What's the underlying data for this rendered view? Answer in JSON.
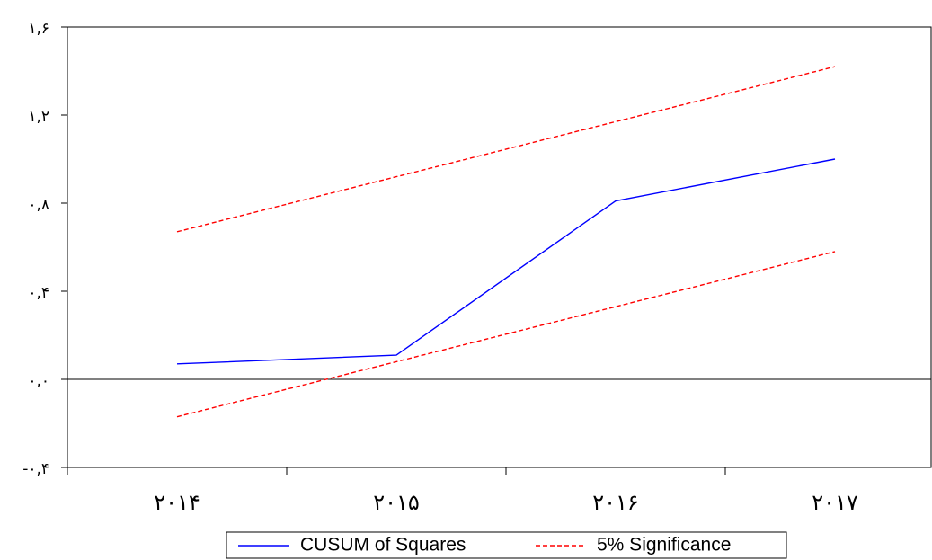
{
  "chart_data": {
    "type": "line",
    "categories": [
      "2014",
      "2015",
      "2016",
      "2017"
    ],
    "x_tick_labels": [
      "۲۰۱۴",
      "۲۰۱۵",
      "۲۰۱۶",
      "۲۰۱۷"
    ],
    "y_tick_values": [
      -0.4,
      0.0,
      0.4,
      0.8,
      1.2,
      1.6
    ],
    "y_tick_labels": [
      "-۰,۴",
      "۰,۰",
      "۰,۴",
      "۰,۸",
      "۱,۲",
      "۱,۶"
    ],
    "ylim": [
      -0.4,
      1.6
    ],
    "series": [
      {
        "name": "CUSUM of Squares",
        "values": [
          0.07,
          0.11,
          0.81,
          1.0
        ],
        "color": "#0000ff",
        "dash": "solid"
      },
      {
        "name": "5% Significance",
        "values": [
          0.67,
          0.92,
          1.17,
          1.42
        ],
        "color": "#ff0000",
        "dash": "dashed"
      },
      {
        "name": "5% Significance",
        "values": [
          -0.17,
          0.08,
          0.33,
          0.58
        ],
        "color": "#ff0000",
        "dash": "dashed",
        "legend": false
      }
    ],
    "reference_line": {
      "y": 0.0,
      "color": "#000000"
    },
    "legend_position": "bottom-center"
  }
}
